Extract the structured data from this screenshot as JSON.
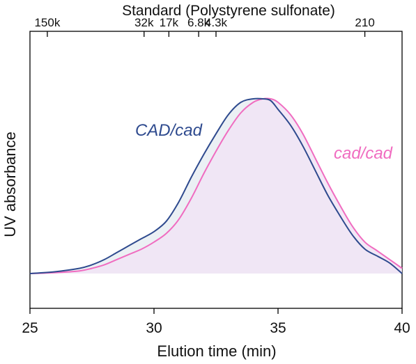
{
  "chart_data": {
    "type": "line",
    "title": "Standard (Polystyrene sulfonate)",
    "xlabel": "Elution time (min)",
    "ylabel": "UV absorbance",
    "xlim": [
      25,
      40
    ],
    "ylim": [
      0,
      1
    ],
    "x_ticks": [
      25,
      30,
      35,
      40
    ],
    "y_ticks": [],
    "grid": false,
    "legend": "inline-labels",
    "top_axis": {
      "label": "Standard (Polystyrene sulfonate)",
      "ticks": [
        {
          "label": "150k",
          "x": 25.7
        },
        {
          "label": "32k",
          "x": 29.6
        },
        {
          "label": "17k",
          "x": 30.6
        },
        {
          "label": "6.8k",
          "x": 31.8
        },
        {
          "label": "4.3k",
          "x": 32.5
        },
        {
          "label": "210",
          "x": 38.5
        }
      ]
    },
    "series": [
      {
        "name": "CAD/cad",
        "color": "#2e4a8e",
        "x": [
          25,
          26,
          27,
          27.5,
          28,
          28.5,
          29,
          29.5,
          30,
          30.5,
          31,
          31.5,
          32,
          32.5,
          33,
          33.5,
          34,
          34.4,
          34.7,
          35,
          35.5,
          36,
          36.5,
          37,
          37.5,
          38,
          38.5,
          39,
          39.5,
          40
        ],
        "y": [
          0.0,
          0.01,
          0.03,
          0.05,
          0.08,
          0.12,
          0.16,
          0.2,
          0.24,
          0.3,
          0.41,
          0.55,
          0.68,
          0.8,
          0.91,
          0.98,
          1.0,
          1.0,
          0.99,
          0.94,
          0.85,
          0.73,
          0.59,
          0.45,
          0.33,
          0.22,
          0.14,
          0.1,
          0.06,
          0.0
        ]
      },
      {
        "name": "cad/cad",
        "color": "#f06cc0",
        "x": [
          25,
          26,
          27,
          27.5,
          28,
          28.5,
          29,
          29.5,
          30,
          30.5,
          31,
          31.5,
          32,
          32.5,
          33,
          33.5,
          34,
          34.4,
          34.7,
          35,
          35.5,
          36,
          36.5,
          37,
          37.5,
          38,
          38.5,
          39,
          39.5,
          40
        ],
        "y": [
          0.0,
          0.005,
          0.015,
          0.03,
          0.05,
          0.08,
          0.11,
          0.14,
          0.18,
          0.23,
          0.31,
          0.43,
          0.57,
          0.7,
          0.82,
          0.92,
          0.98,
          1.0,
          1.0,
          0.98,
          0.91,
          0.8,
          0.66,
          0.52,
          0.39,
          0.27,
          0.18,
          0.13,
          0.08,
          0.03
        ]
      }
    ]
  }
}
